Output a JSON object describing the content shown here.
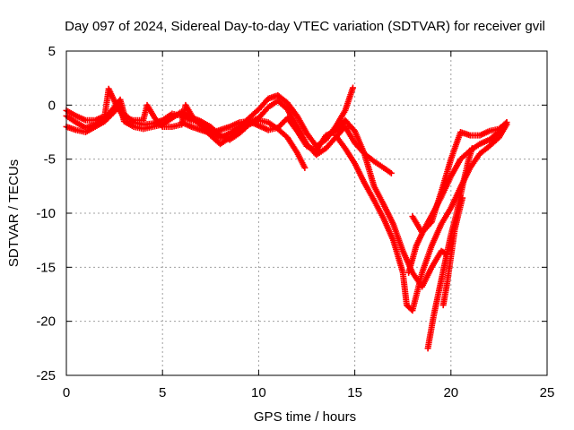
{
  "chart_data": {
    "type": "scatter",
    "title": "Day 097 of 2024, Sidereal Day-to-day VTEC variation (SDTVAR) for receiver gvil",
    "xlabel": "GPS time / hours",
    "ylabel": "SDTVAR / TECUs",
    "xlim": [
      0,
      25
    ],
    "ylim": [
      -25,
      5
    ],
    "xticks": [
      0,
      5,
      10,
      15,
      20,
      25
    ],
    "yticks": [
      -25,
      -20,
      -15,
      -10,
      -5,
      0,
      5
    ],
    "grid": true,
    "legend": "none",
    "marker": "plus",
    "color": "#ff0000",
    "tracks": [
      [
        [
          0.0,
          -1.0
        ],
        [
          0.5,
          -1.6
        ],
        [
          1.0,
          -2.1
        ],
        [
          1.5,
          -1.8
        ],
        [
          2.0,
          -1.2
        ],
        [
          2.4,
          -0.4
        ],
        [
          2.8,
          0.5
        ],
        [
          3.0,
          -0.8
        ],
        [
          3.5,
          -1.6
        ],
        [
          4.0,
          -1.8
        ],
        [
          4.5,
          -1.7
        ],
        [
          5.0,
          -1.4
        ],
        [
          5.5,
          -0.8
        ],
        [
          6.0,
          -1.0
        ],
        [
          6.5,
          -1.4
        ],
        [
          7.0,
          -1.6
        ],
        [
          7.5,
          -2.4
        ],
        [
          8.0,
          -3.0
        ],
        [
          8.5,
          -2.6
        ],
        [
          9.0,
          -2.0
        ],
        [
          9.5,
          -1.2
        ],
        [
          10.0,
          -0.4
        ],
        [
          10.5,
          0.6
        ],
        [
          11.0,
          0.9
        ],
        [
          11.5,
          0.2
        ],
        [
          12.0,
          -1.0
        ],
        [
          12.5,
          -2.6
        ],
        [
          13.0,
          -3.8
        ],
        [
          13.5,
          -3.2
        ],
        [
          14.0,
          -2.0
        ],
        [
          14.5,
          -0.5
        ],
        [
          14.9,
          1.6
        ]
      ],
      [
        [
          0.0,
          -2.0
        ],
        [
          0.5,
          -2.3
        ],
        [
          1.0,
          -2.5
        ],
        [
          1.5,
          -2.0
        ],
        [
          2.0,
          -1.5
        ],
        [
          2.5,
          -0.6
        ],
        [
          2.8,
          0.0
        ],
        [
          3.0,
          -1.5
        ],
        [
          3.5,
          -2.0
        ],
        [
          4.0,
          -2.2
        ],
        [
          4.5,
          -2.0
        ],
        [
          5.0,
          -1.8
        ],
        [
          5.5,
          -1.2
        ],
        [
          6.0,
          -0.6
        ],
        [
          6.5,
          -1.1
        ],
        [
          7.0,
          -1.9
        ],
        [
          7.5,
          -2.8
        ],
        [
          8.0,
          -3.6
        ],
        [
          8.5,
          -3.0
        ],
        [
          9.0,
          -2.4
        ],
        [
          9.5,
          -1.6
        ],
        [
          10.0,
          -1.2
        ],
        [
          10.5,
          -0.2
        ],
        [
          11.0,
          0.4
        ],
        [
          11.5,
          -0.4
        ],
        [
          12.0,
          -2.0
        ],
        [
          12.5,
          -3.6
        ],
        [
          13.0,
          -4.6
        ],
        [
          13.5,
          -4.0
        ],
        [
          14.0,
          -3.0
        ],
        [
          14.5,
          -2.0
        ],
        [
          15.0,
          -3.5
        ],
        [
          15.5,
          -4.5
        ],
        [
          16.0,
          -5.2
        ],
        [
          16.5,
          -5.8
        ],
        [
          16.9,
          -6.3
        ]
      ],
      [
        [
          0.0,
          -0.5
        ],
        [
          0.5,
          -1.0
        ],
        [
          1.0,
          -1.4
        ],
        [
          1.5,
          -1.4
        ],
        [
          2.0,
          -1.0
        ],
        [
          2.2,
          1.5
        ],
        [
          2.6,
          0.0
        ],
        [
          3.0,
          -1.2
        ],
        [
          3.5,
          -1.4
        ],
        [
          4.0,
          -1.4
        ],
        [
          4.2,
          0.0
        ],
        [
          4.6,
          -1.2
        ],
        [
          5.0,
          -2.0
        ],
        [
          5.5,
          -2.0
        ],
        [
          6.0,
          -1.8
        ],
        [
          6.2,
          0.0
        ],
        [
          6.6,
          -1.2
        ],
        [
          7.0,
          -1.5
        ],
        [
          7.5,
          -2.0
        ],
        [
          8.0,
          -2.8
        ],
        [
          8.5,
          -3.2
        ],
        [
          9.0,
          -2.6
        ],
        [
          9.5,
          -1.8
        ],
        [
          10.0,
          -1.4
        ],
        [
          10.5,
          -1.6
        ],
        [
          11.0,
          -2.2
        ],
        [
          11.5,
          -3.0
        ],
        [
          12.0,
          -4.4
        ],
        [
          12.4,
          -5.8
        ]
      ],
      [
        [
          6.0,
          -1.6
        ],
        [
          6.5,
          -2.0
        ],
        [
          7.0,
          -2.3
        ],
        [
          7.5,
          -2.6
        ],
        [
          8.0,
          -2.3
        ],
        [
          8.5,
          -2.0
        ],
        [
          9.0,
          -1.6
        ],
        [
          9.5,
          -1.5
        ],
        [
          10.0,
          -1.9
        ],
        [
          10.5,
          -2.3
        ],
        [
          11.0,
          -2.1
        ],
        [
          11.5,
          -1.2
        ],
        [
          12.0,
          -2.4
        ],
        [
          12.5,
          -3.8
        ],
        [
          13.0,
          -4.2
        ],
        [
          13.5,
          -2.8
        ],
        [
          14.0,
          -2.4
        ],
        [
          14.5,
          -1.4
        ],
        [
          15.0,
          -2.4
        ],
        [
          15.5,
          -4.5
        ],
        [
          16.0,
          -7.5
        ],
        [
          16.5,
          -9.2
        ],
        [
          17.0,
          -11.0
        ],
        [
          17.5,
          -13.5
        ],
        [
          18.0,
          -15.5
        ],
        [
          18.5,
          -16.8
        ],
        [
          19.0,
          -15.0
        ],
        [
          19.5,
          -13.5
        ],
        [
          19.8,
          -13.8
        ]
      ],
      [
        [
          14.0,
          -2.8
        ],
        [
          14.5,
          -4.0
        ],
        [
          15.0,
          -5.4
        ],
        [
          15.5,
          -7.2
        ],
        [
          16.0,
          -8.8
        ],
        [
          16.5,
          -10.5
        ],
        [
          17.0,
          -12.5
        ],
        [
          17.5,
          -15.5
        ],
        [
          17.7,
          -18.5
        ],
        [
          18.0,
          -19.0
        ],
        [
          18.5,
          -15.5
        ],
        [
          19.0,
          -13.0
        ],
        [
          19.5,
          -11.0
        ],
        [
          20.0,
          -9.5
        ],
        [
          20.5,
          -7.6
        ],
        [
          21.0,
          -5.8
        ],
        [
          21.5,
          -4.5
        ],
        [
          22.0,
          -3.8
        ],
        [
          22.5,
          -3.0
        ],
        [
          22.9,
          -1.8
        ]
      ],
      [
        [
          17.8,
          -15.5
        ],
        [
          18.2,
          -13.0
        ],
        [
          18.6,
          -11.5
        ],
        [
          19.0,
          -10.2
        ],
        [
          19.5,
          -8.5
        ],
        [
          20.0,
          -6.6
        ],
        [
          20.5,
          -5.0
        ],
        [
          21.0,
          -4.2
        ],
        [
          21.5,
          -3.6
        ],
        [
          22.0,
          -3.2
        ],
        [
          22.5,
          -2.5
        ],
        [
          22.9,
          -1.6
        ]
      ],
      [
        [
          18.0,
          -10.3
        ],
        [
          18.5,
          -11.8
        ],
        [
          19.0,
          -10.8
        ],
        [
          19.5,
          -8.0
        ],
        [
          20.0,
          -5.0
        ],
        [
          20.5,
          -2.5
        ],
        [
          21.0,
          -2.8
        ],
        [
          21.5,
          -2.8
        ],
        [
          22.0,
          -2.4
        ],
        [
          22.5,
          -2.2
        ],
        [
          22.9,
          -1.6
        ]
      ],
      [
        [
          18.8,
          -22.5
        ],
        [
          19.1,
          -19.5
        ],
        [
          19.4,
          -17.0
        ],
        [
          19.7,
          -14.5
        ],
        [
          20.0,
          -12.0
        ],
        [
          20.3,
          -10.0
        ],
        [
          20.6,
          -7.5
        ],
        [
          20.9,
          -5.2
        ],
        [
          21.1,
          -4.0
        ]
      ],
      [
        [
          19.6,
          -18.5
        ],
        [
          19.8,
          -16.5
        ],
        [
          20.0,
          -14.0
        ],
        [
          20.2,
          -11.5
        ],
        [
          20.4,
          -10.0
        ],
        [
          20.6,
          -8.6
        ]
      ]
    ]
  }
}
